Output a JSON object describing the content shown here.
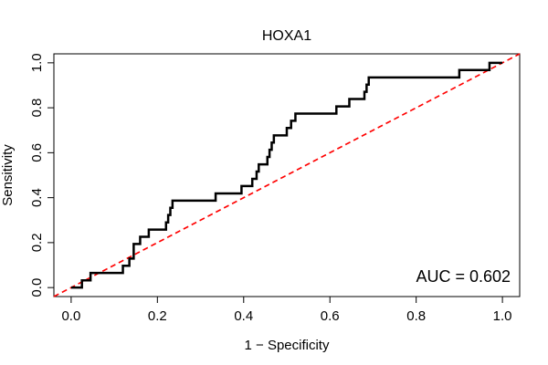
{
  "chart_data": {
    "type": "line",
    "title": "HOXA1",
    "xlabel": "1 − Specificity",
    "ylabel": "Sensitivity",
    "xlim": [
      -0.04,
      1.04
    ],
    "ylim": [
      -0.04,
      1.04
    ],
    "x_ticks": [
      "0.0",
      "0.2",
      "0.4",
      "0.6",
      "0.8",
      "1.0"
    ],
    "y_ticks": [
      "0.0",
      "0.2",
      "0.4",
      "0.6",
      "0.8",
      "1.0"
    ],
    "x_tick_values": [
      0,
      0.2,
      0.4,
      0.6,
      0.8,
      1.0
    ],
    "y_tick_values": [
      0,
      0.2,
      0.4,
      0.6,
      0.8,
      1.0
    ],
    "annotation": "AUC = 0.602",
    "series": [
      {
        "color": "#000000",
        "style": "solid",
        "points": [
          [
            0.0,
            0.0
          ],
          [
            0.025,
            0.0
          ],
          [
            0.025,
            0.032
          ],
          [
            0.045,
            0.032
          ],
          [
            0.045,
            0.065
          ],
          [
            0.12,
            0.065
          ],
          [
            0.12,
            0.097
          ],
          [
            0.135,
            0.097
          ],
          [
            0.135,
            0.129
          ],
          [
            0.145,
            0.129
          ],
          [
            0.145,
            0.161
          ],
          [
            0.145,
            0.194
          ],
          [
            0.16,
            0.194
          ],
          [
            0.16,
            0.226
          ],
          [
            0.18,
            0.226
          ],
          [
            0.18,
            0.258
          ],
          [
            0.22,
            0.258
          ],
          [
            0.22,
            0.29
          ],
          [
            0.225,
            0.29
          ],
          [
            0.225,
            0.323
          ],
          [
            0.23,
            0.323
          ],
          [
            0.23,
            0.355
          ],
          [
            0.235,
            0.355
          ],
          [
            0.235,
            0.387
          ],
          [
            0.335,
            0.387
          ],
          [
            0.335,
            0.419
          ],
          [
            0.395,
            0.419
          ],
          [
            0.395,
            0.452
          ],
          [
            0.42,
            0.452
          ],
          [
            0.42,
            0.484
          ],
          [
            0.43,
            0.484
          ],
          [
            0.43,
            0.516
          ],
          [
            0.435,
            0.516
          ],
          [
            0.435,
            0.548
          ],
          [
            0.455,
            0.548
          ],
          [
            0.455,
            0.581
          ],
          [
            0.46,
            0.581
          ],
          [
            0.46,
            0.613
          ],
          [
            0.465,
            0.613
          ],
          [
            0.465,
            0.645
          ],
          [
            0.47,
            0.645
          ],
          [
            0.47,
            0.677
          ],
          [
            0.5,
            0.677
          ],
          [
            0.5,
            0.71
          ],
          [
            0.51,
            0.71
          ],
          [
            0.51,
            0.742
          ],
          [
            0.52,
            0.742
          ],
          [
            0.52,
            0.774
          ],
          [
            0.615,
            0.774
          ],
          [
            0.615,
            0.806
          ],
          [
            0.645,
            0.806
          ],
          [
            0.645,
            0.839
          ],
          [
            0.68,
            0.839
          ],
          [
            0.68,
            0.871
          ],
          [
            0.685,
            0.871
          ],
          [
            0.685,
            0.903
          ],
          [
            0.69,
            0.903
          ],
          [
            0.69,
            0.935
          ],
          [
            0.9,
            0.935
          ],
          [
            0.9,
            0.968
          ],
          [
            0.97,
            0.968
          ],
          [
            0.97,
            1.0
          ],
          [
            1.0,
            1.0
          ]
        ]
      },
      {
        "color": "#ff0000",
        "style": "dashed",
        "points": [
          [
            -0.04,
            -0.04
          ],
          [
            1.04,
            1.04
          ]
        ]
      }
    ]
  }
}
